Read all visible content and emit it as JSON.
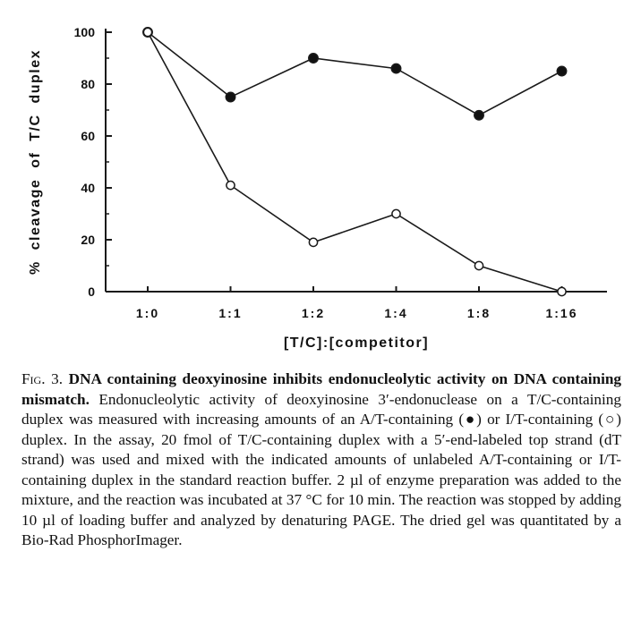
{
  "chart_data": {
    "type": "line",
    "categories": [
      "1:0",
      "1:1",
      "1:2",
      "1:4",
      "1:8",
      "1:16"
    ],
    "series": [
      {
        "marker": "filled-circle",
        "values": [
          100,
          75,
          90,
          86,
          68,
          85
        ]
      },
      {
        "marker": "open-circle",
        "values": [
          100,
          41,
          19,
          30,
          10,
          0
        ]
      }
    ],
    "title": "",
    "xlabel": "[T/C]:[competitor]",
    "ylabel": "% cleavage of T/C duplex",
    "ylim": [
      0,
      100
    ],
    "yticks": [
      "0",
      "20",
      "40",
      "60",
      "80",
      "100"
    ],
    "grid": false,
    "legend": "none",
    "colors": {
      "line": "#1a1a1a",
      "filled_marker": "#111111",
      "open_marker_fill": "#ffffff"
    }
  },
  "caption": {
    "fig_label": "Fig. 3.",
    "title": "DNA containing deoxyinosine inhibits endonucleolytic activity on DNA containing mismatch.",
    "body": "Endonucleolytic activity of deoxyinosine 3′-endonuclease on a T/C-containing duplex was measured with increasing amounts of an A/T-containing (●) or I/T-containing (○) duplex. In the assay, 20 fmol of T/C-containing duplex with a 5′-end-labeled top strand (dT strand) was used and mixed with the indicated amounts of unlabeled A/T-containing or I/T-containing duplex in the standard reaction buffer. 2 µl of enzyme preparation was added to the mixture, and the reaction was incubated at 37 °C for 10 min. The reaction was stopped by adding 10 µl of loading buffer and analyzed by denaturing PAGE. The dried gel was quantitated by a Bio-Rad PhosphorImager."
  }
}
